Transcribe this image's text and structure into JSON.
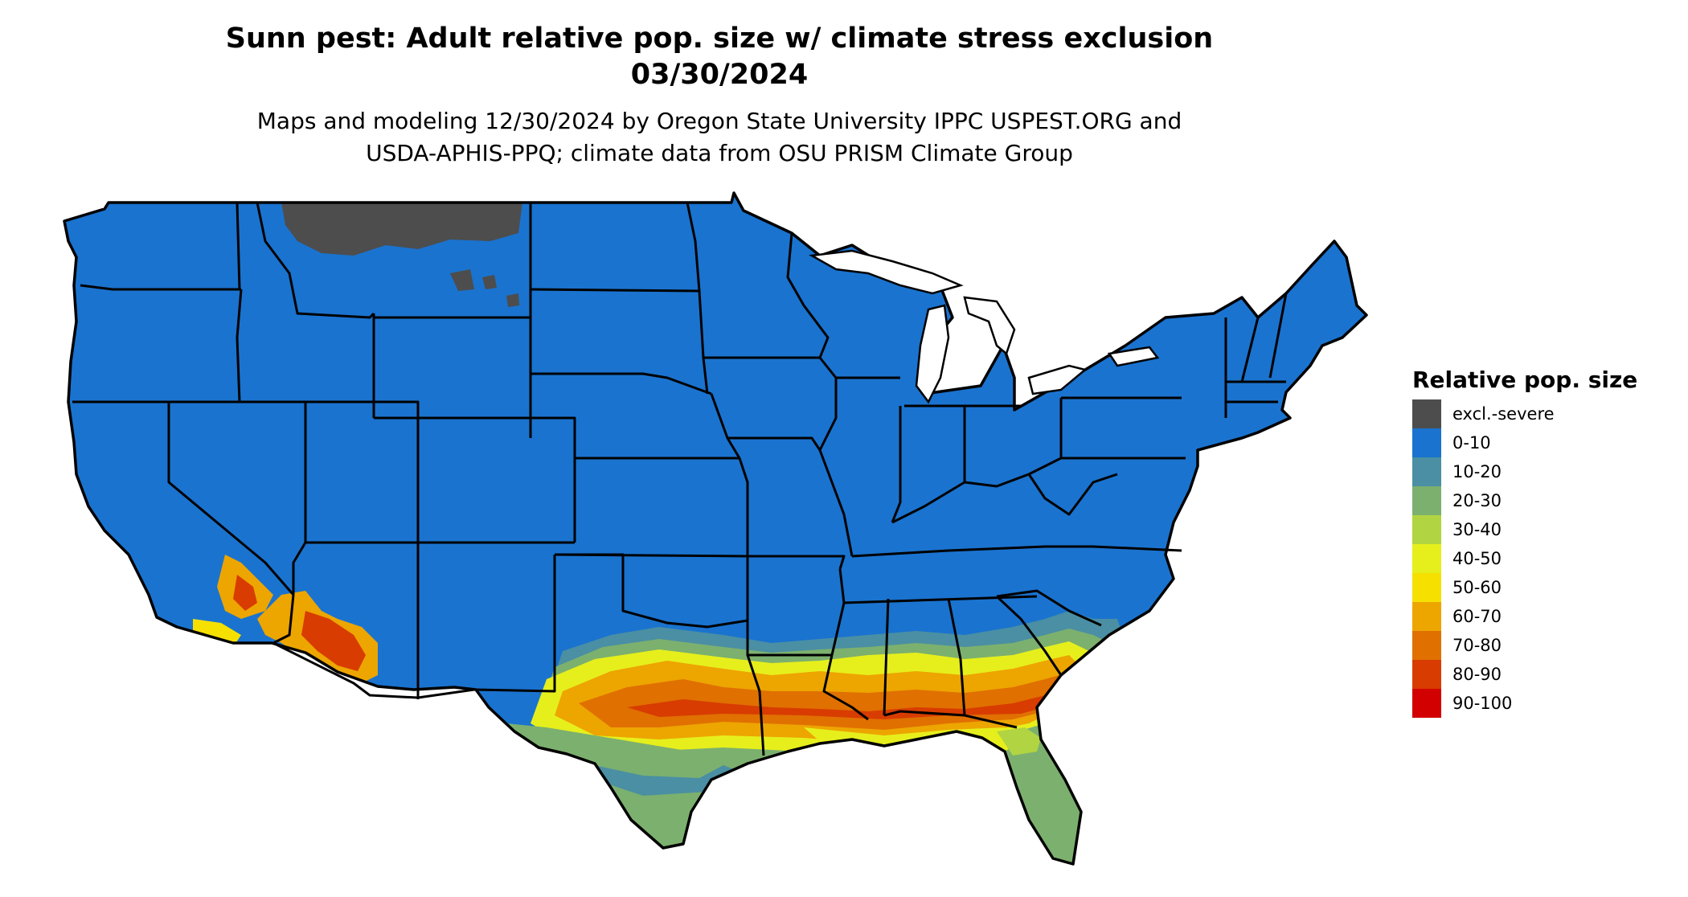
{
  "header": {
    "title_line1": "Sunn pest: Adult relative pop. size w/ climate stress exclusion",
    "title_line2": "03/30/2024",
    "subtitle_line1": "Maps and modeling 12/30/2024 by Oregon State University IPPC USPEST.ORG and",
    "subtitle_line2": "USDA-APHIS-PPQ; climate data from OSU PRISM Climate Group"
  },
  "legend": {
    "title": "Relative pop. size",
    "items": [
      {
        "label": "excl.-severe",
        "color": "#4d4d4d"
      },
      {
        "label": "0-10",
        "color": "#1a73cf"
      },
      {
        "label": "10-20",
        "color": "#4a8fa3"
      },
      {
        "label": "20-30",
        "color": "#7cb06e"
      },
      {
        "label": "30-40",
        "color": "#b1d442"
      },
      {
        "label": "40-50",
        "color": "#e6ef1c"
      },
      {
        "label": "50-60",
        "color": "#f5e000"
      },
      {
        "label": "60-70",
        "color": "#eda500"
      },
      {
        "label": "70-80",
        "color": "#e07000"
      },
      {
        "label": "80-90",
        "color": "#d83c00"
      },
      {
        "label": "90-100",
        "color": "#d20000"
      }
    ]
  }
}
